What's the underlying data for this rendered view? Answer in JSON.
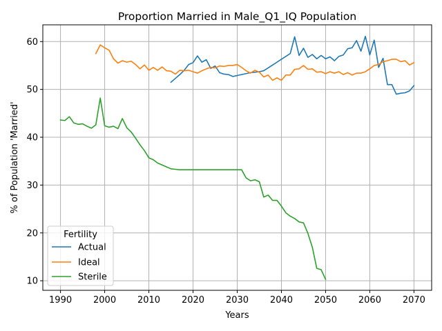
{
  "chart_data": {
    "type": "line",
    "title": "Proportion Married in Male_Q1_IQ Population",
    "xlabel": "Years",
    "ylabel": "% of Population 'Married'",
    "xlim": [
      1986.0,
      2074.0
    ],
    "ylim": [
      8.0,
      63.5
    ],
    "xticks": [
      1990,
      2000,
      2010,
      2020,
      2030,
      2040,
      2050,
      2060,
      2070
    ],
    "yticks": [
      10,
      20,
      30,
      40,
      50,
      60
    ],
    "grid": true,
    "legend": {
      "title": "Fertility",
      "placement": "lower-left"
    },
    "series": [
      {
        "name": "Actual",
        "color": "#1f77b4",
        "x": [
          2015,
          2016,
          2017,
          2018,
          2019,
          2020,
          2021,
          2022,
          2023,
          2024,
          2025,
          2026,
          2027,
          2028,
          2029,
          2030,
          2031,
          2032,
          2033,
          2034,
          2035,
          2036,
          2037,
          2038,
          2039,
          2040,
          2041,
          2042,
          2043,
          2044,
          2045,
          2046,
          2047,
          2048,
          2049,
          2050,
          2051,
          2052,
          2053,
          2054,
          2055,
          2056,
          2057,
          2058,
          2059,
          2060,
          2061,
          2062,
          2063,
          2064,
          2065,
          2066,
          2067,
          2068,
          2069,
          2070
        ],
        "y": [
          51.5,
          52.3,
          53.1,
          54.0,
          55.2,
          55.6,
          57.0,
          55.7,
          56.2,
          54.4,
          54.9,
          53.5,
          53.2,
          53.1,
          52.7,
          52.9,
          53.1,
          53.3,
          53.5,
          53.6,
          53.7,
          53.9,
          54.5,
          55.1,
          55.7,
          56.3,
          56.9,
          57.5,
          61.0,
          57.1,
          58.6,
          56.7,
          57.3,
          56.4,
          57.1,
          56.4,
          56.8,
          56.0,
          56.9,
          57.2,
          58.5,
          58.7,
          60.2,
          58.0,
          61.1,
          57.2,
          60.3,
          54.6,
          56.5,
          51.0,
          51.0,
          49.0,
          49.2,
          49.3,
          49.7,
          50.8
        ]
      },
      {
        "name": "Ideal",
        "color": "#ff7f0e",
        "x": [
          1998,
          1999,
          2000,
          2001,
          2002,
          2003,
          2004,
          2005,
          2006,
          2007,
          2008,
          2009,
          2010,
          2011,
          2012,
          2013,
          2014,
          2015,
          2016,
          2017,
          2018,
          2019,
          2020,
          2021,
          2022,
          2023,
          2024,
          2025,
          2026,
          2027,
          2028,
          2029,
          2030,
          2031,
          2032,
          2033,
          2034,
          2035,
          2036,
          2037,
          2038,
          2039,
          2040,
          2041,
          2042,
          2043,
          2044,
          2045,
          2046,
          2047,
          2048,
          2049,
          2050,
          2051,
          2052,
          2053,
          2054,
          2055,
          2056,
          2057,
          2058,
          2059,
          2060,
          2061,
          2062,
          2063,
          2064,
          2065,
          2066,
          2067,
          2068,
          2069,
          2070
        ],
        "y": [
          57.5,
          59.3,
          58.7,
          58.2,
          56.4,
          55.5,
          56.0,
          55.7,
          55.9,
          55.2,
          54.3,
          55.1,
          54.0,
          54.6,
          54.0,
          54.7,
          53.9,
          53.8,
          53.2,
          54.0,
          53.9,
          54.0,
          53.7,
          53.4,
          53.9,
          54.3,
          54.6,
          54.5,
          54.9,
          54.8,
          55.0,
          55.0,
          55.2,
          54.6,
          53.9,
          53.4,
          54.0,
          53.6,
          52.6,
          53.0,
          51.9,
          52.4,
          51.9,
          53.0,
          53.0,
          54.2,
          54.3,
          55.0,
          54.2,
          54.3,
          53.6,
          53.7,
          53.3,
          53.7,
          53.4,
          53.7,
          53.1,
          53.5,
          53.0,
          53.4,
          53.4,
          53.7,
          54.3,
          55.0,
          55.2,
          55.8,
          56.0,
          56.3,
          56.3,
          55.8,
          56.0,
          55.1,
          55.6
        ]
      },
      {
        "name": "Sterile",
        "color": "#2ca02c",
        "x": [
          1990,
          1991,
          1992,
          1993,
          1994,
          1995,
          1996,
          1997,
          1998,
          1999,
          2000,
          2001,
          2002,
          2003,
          2004,
          2005,
          2006,
          2007,
          2008,
          2009,
          2010,
          2011,
          2012,
          2013,
          2014,
          2015,
          2016,
          2017,
          2018,
          2019,
          2020,
          2021,
          2022,
          2023,
          2024,
          2025,
          2026,
          2027,
          2028,
          2029,
          2030,
          2031,
          2032,
          2033,
          2034,
          2035,
          2036,
          2037,
          2038,
          2039,
          2040,
          2041,
          2042,
          2043,
          2044,
          2045,
          2046,
          2047,
          2048,
          2049,
          2050
        ],
        "y": [
          43.6,
          43.5,
          44.3,
          43.0,
          42.7,
          42.8,
          42.3,
          41.9,
          42.6,
          48.2,
          42.4,
          42.1,
          42.3,
          41.8,
          43.9,
          42.0,
          41.1,
          39.8,
          38.4,
          37.2,
          35.7,
          35.3,
          34.6,
          34.2,
          33.8,
          33.4,
          33.3,
          33.2,
          33.2,
          33.2,
          33.2,
          33.2,
          33.2,
          33.2,
          33.2,
          33.2,
          33.2,
          33.2,
          33.2,
          33.2,
          33.2,
          33.2,
          31.5,
          30.9,
          31.1,
          30.7,
          27.5,
          27.9,
          26.8,
          26.8,
          25.6,
          24.2,
          23.5,
          23.0,
          22.3,
          22.1,
          19.9,
          17.0,
          12.6,
          12.3,
          10.3
        ]
      }
    ]
  }
}
